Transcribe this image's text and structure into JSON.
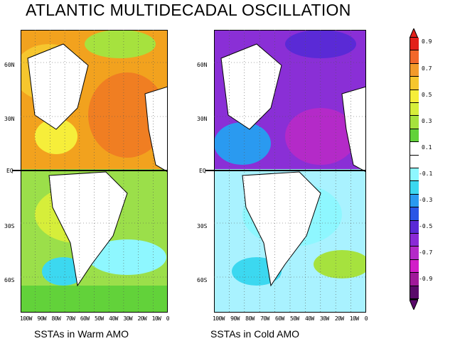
{
  "title": "ATLANTIC MULTIDECADAL OSCILLATION",
  "panels": [
    {
      "caption": "SSTAs in Warm AMO",
      "lat_labels": [
        "60N",
        "30N",
        "EQ",
        "30S",
        "60S"
      ],
      "lon_labels": [
        "100W",
        "90W",
        "80W",
        "70W",
        "60W",
        "50W",
        "40W",
        "30W",
        "20W",
        "10W",
        "0"
      ],
      "north_color": "#f2a21e",
      "south_color": "#9bdf4a"
    },
    {
      "caption": "SSTAs in Cold AMO",
      "lat_labels": [
        "60N",
        "30N",
        "EQ",
        "30S",
        "60S"
      ],
      "lon_labels": [
        "100W",
        "90W",
        "80W",
        "70W",
        "60W",
        "50W",
        "40W",
        "30W",
        "20W",
        "10W",
        "0"
      ],
      "north_color": "#8a2fd6",
      "south_color": "#a9f2ff"
    }
  ],
  "colorbar": {
    "labels": [
      "0.9",
      "0.7",
      "0.5",
      "0.3",
      "0.1",
      "-0.1",
      "-0.3",
      "-0.5",
      "-0.7",
      "-0.9"
    ],
    "colors": [
      "#e3201a",
      "#f2682a",
      "#f39a2a",
      "#f6c62e",
      "#f6ee3a",
      "#d6ee3a",
      "#a6e23e",
      "#62d23a",
      "#ffffff",
      "#ffffff",
      "#8ef7ff",
      "#3cd8f0",
      "#2a9af0",
      "#2a56e6",
      "#5a2ad6",
      "#8a2ad6",
      "#b42ac8",
      "#d21ec8",
      "#a01a9a",
      "#5a0a6a"
    ]
  }
}
